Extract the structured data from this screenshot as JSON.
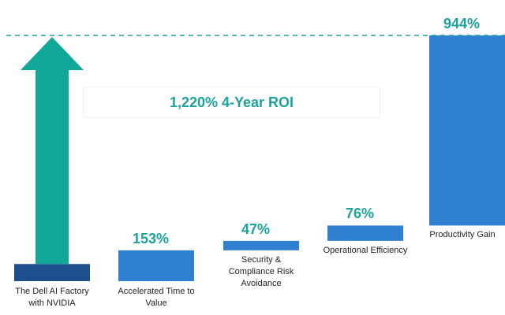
{
  "chart_data": {
    "type": "waterfall",
    "categories": [
      "The Dell AI Factory with NVIDIA",
      "Accelerated Time to Value",
      "Security & Compliance Risk Avoidance",
      "Operational Efficiency",
      "Productivity Gain"
    ],
    "values": [
      85,
      153,
      47,
      76,
      944
    ],
    "value_labels": [
      null,
      "153%",
      "47%",
      "76%",
      "944%"
    ],
    "colors": [
      "#1f4e8c",
      "#2f80d1",
      "#2f80d1",
      "#2f80d1",
      "#2f80d1"
    ],
    "annotation": "1,220% 4-Year ROI",
    "arrow_color": "#11a89a",
    "total_line_color": "#1aa39a"
  }
}
